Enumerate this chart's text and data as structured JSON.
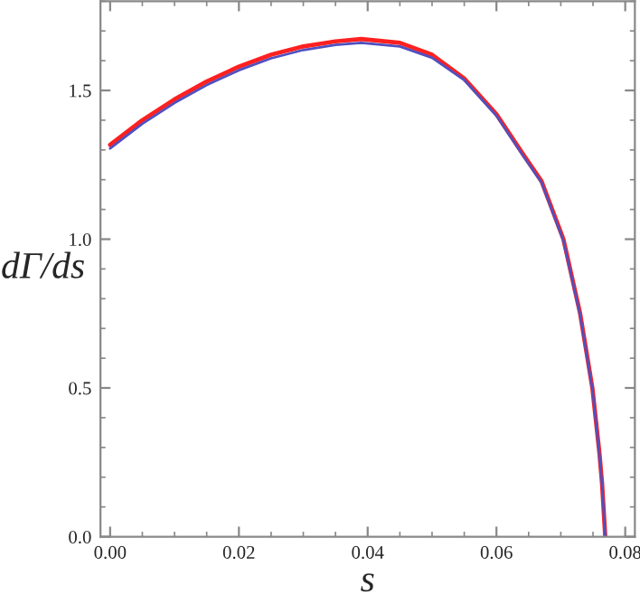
{
  "chart_data": {
    "type": "line",
    "xlabel": "s",
    "ylabel": "dΓ/ds",
    "x": [
      0,
      0.005,
      0.01,
      0.015,
      0.02,
      0.025,
      0.03,
      0.035,
      0.039,
      0.045,
      0.05,
      0.055,
      0.06,
      0.064,
      0.067,
      0.0704,
      0.073,
      0.0749,
      0.076,
      0.0764,
      0.0769
    ],
    "series": [
      {
        "color": "#ff2020",
        "values": [
          1.317,
          1.4,
          1.47,
          1.53,
          1.58,
          1.62,
          1.648,
          1.665,
          1.673,
          1.66,
          1.62,
          1.54,
          1.42,
          1.29,
          1.195,
          1.0,
          0.75,
          0.5,
          0.28,
          0.18,
          0.0
        ]
      },
      {
        "color": "#5050c0",
        "values": [
          1.305,
          1.388,
          1.458,
          1.518,
          1.568,
          1.608,
          1.636,
          1.653,
          1.66,
          1.648,
          1.61,
          1.535,
          1.415,
          1.285,
          1.19,
          0.995,
          0.745,
          0.495,
          0.275,
          0.175,
          0.0
        ]
      }
    ],
    "xlim": [
      -0.0015,
      0.0815
    ],
    "ylim": [
      0,
      1.8
    ],
    "xticks": [
      {
        "value": 0,
        "label": "0.00"
      },
      {
        "value": 0.02,
        "label": "0.02"
      },
      {
        "value": 0.04,
        "label": "0.04"
      },
      {
        "value": 0.06,
        "label": "0.06"
      },
      {
        "value": 0.08,
        "label": "0.08"
      }
    ],
    "yticks": [
      {
        "value": 0,
        "label": "0.0"
      },
      {
        "value": 0.5,
        "label": "0.5"
      },
      {
        "value": 1.0,
        "label": "1.0"
      },
      {
        "value": 1.5,
        "label": "1.5"
      }
    ],
    "grid": false,
    "legend": false,
    "marker": "none",
    "line_style": "solid"
  }
}
